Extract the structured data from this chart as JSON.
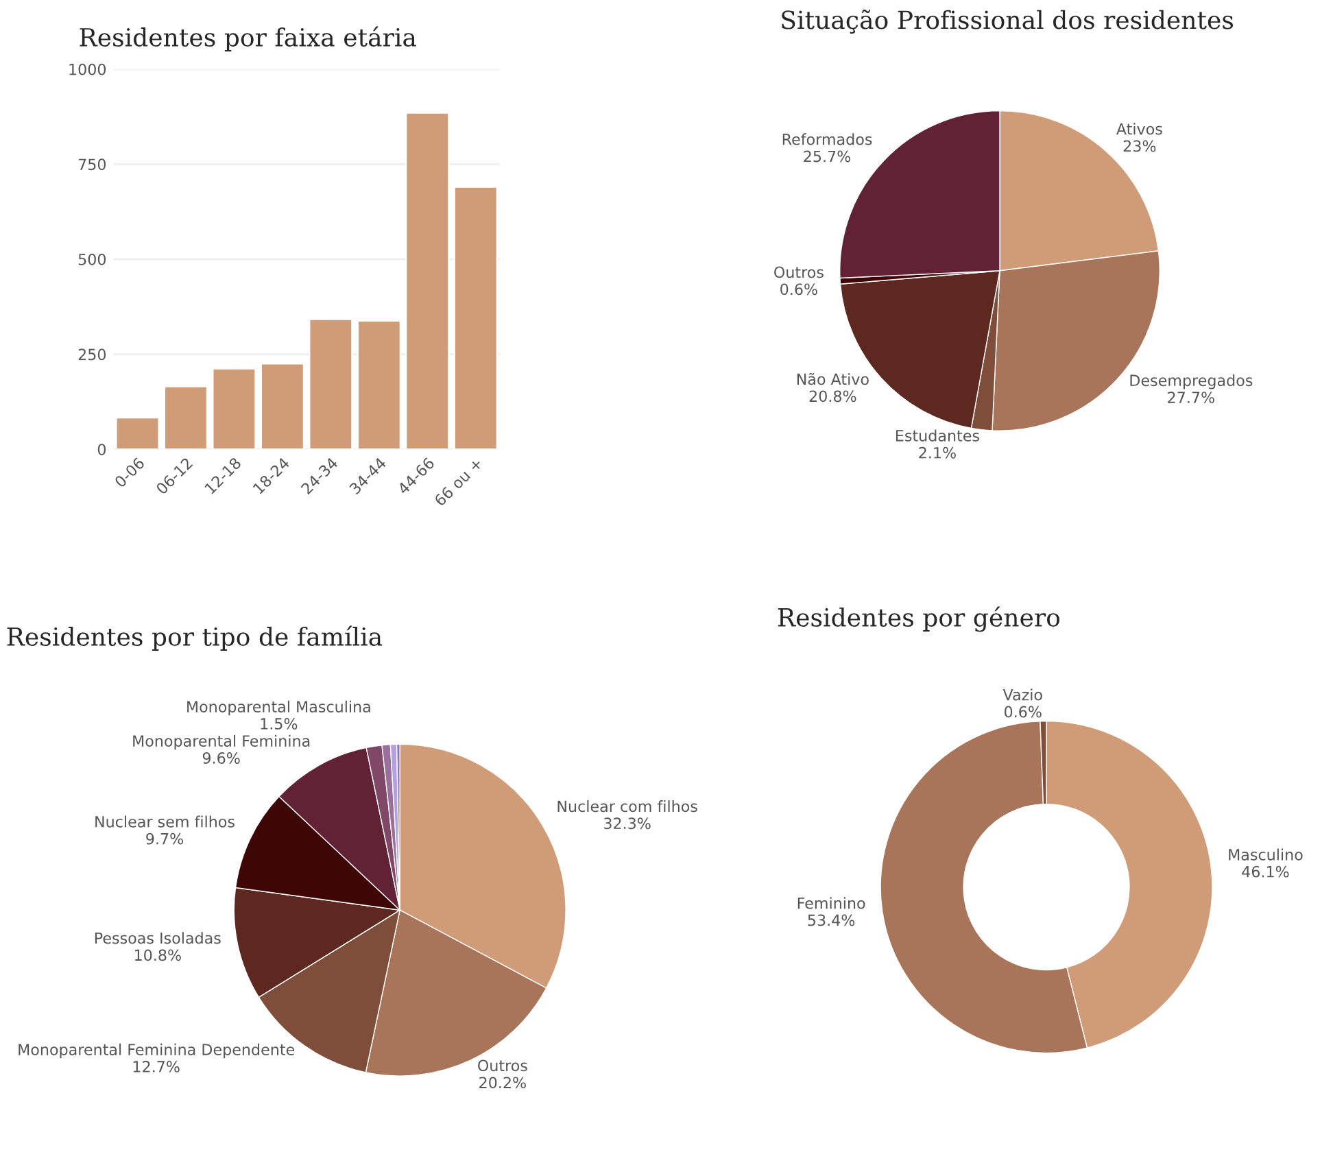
{
  "chart_data": [
    {
      "type": "bar",
      "title": "Residentes por faixa etária",
      "categories": [
        "0-06",
        "06-12",
        "12-18",
        "18-24",
        "24-34",
        "34-44",
        "44-66",
        "66 ou +"
      ],
      "values": [
        83,
        165,
        212,
        225,
        342,
        338,
        885,
        690
      ],
      "color": "#d09c78",
      "ylim": [
        0,
        1000
      ],
      "yticks": [
        0,
        250,
        500,
        750,
        1000
      ],
      "grid": "y",
      "legend": false
    },
    {
      "type": "pie",
      "title": "Situação Profissional dos residentes",
      "categories": [
        "Ativos",
        "Desempregados",
        "Estudantes",
        "Não Ativo",
        "Outros",
        "Reformados"
      ],
      "values": [
        23,
        27.7,
        2.1,
        20.8,
        0.6,
        25.7
      ],
      "value_labels": [
        "23%",
        "27.7%",
        "2.1%",
        "20.8%",
        "0.6%",
        "25.7%"
      ],
      "colors": [
        "#d09c78",
        "#a8755a",
        "#7f4e3a",
        "#5c2820",
        "#3f0606",
        "#612235"
      ],
      "legend": false
    },
    {
      "type": "pie",
      "title": "Residentes por tipo de família",
      "categories": [
        "Nuclear com filhos",
        "Outros",
        "Monoparental Feminina Dependente",
        "Pessoas Isoladas",
        "Nuclear sem filhos",
        "Monoparental Feminina",
        "Monoparental Masculina",
        null,
        null,
        null
      ],
      "values": [
        32.3,
        20.2,
        12.7,
        10.8,
        9.7,
        9.6,
        1.5,
        0.8,
        0.6,
        0.3
      ],
      "value_labels": [
        "32.3%",
        "20.2%",
        "12.7%",
        "10.8%",
        "9.7%",
        "9.6%",
        "1.5%",
        null,
        null,
        null
      ],
      "colors": [
        "#d09c78",
        "#a8755a",
        "#7f4e3a",
        "#5c2820",
        "#3f0606",
        "#612235",
        "#804866",
        "#9a6f9a",
        "#b3a0e0",
        "#8a78c0"
      ],
      "legend": false
    },
    {
      "type": "donut",
      "title": "Residentes por género",
      "categories": [
        "Masculino",
        "Feminino",
        "Vazio"
      ],
      "values": [
        46.1,
        53.4,
        0.6
      ],
      "value_labels": [
        "46.1%",
        "53.4%",
        "0.6%"
      ],
      "colors": [
        "#d09c78",
        "#a8755a",
        "#7f4e3a"
      ],
      "legend": false
    }
  ]
}
